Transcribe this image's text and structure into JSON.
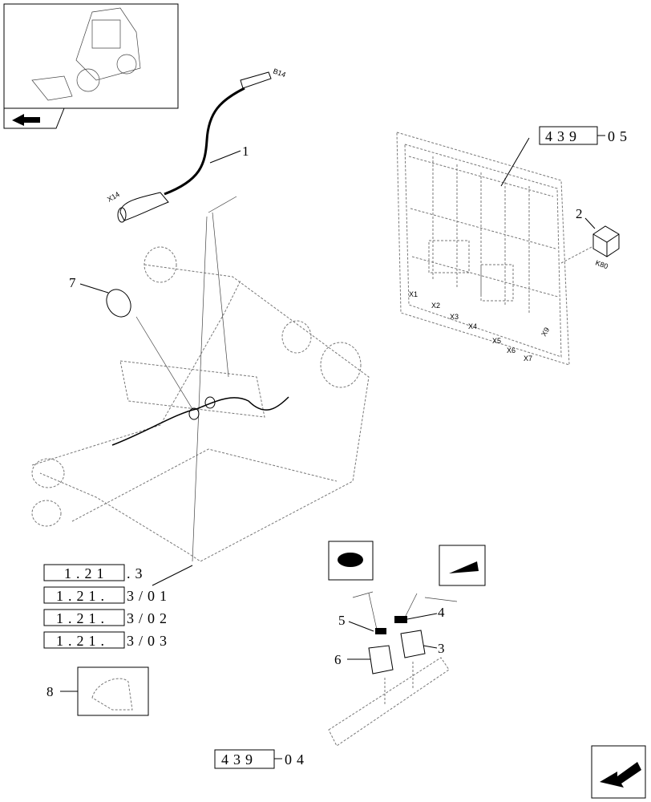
{
  "cable_labels": [
    "B14",
    "X14"
  ],
  "relay_label": "K80",
  "fuse_box_connectors": [
    "X1",
    "X2",
    "X3",
    "X4",
    "X5",
    "X6",
    "X7",
    "X9"
  ],
  "callouts": [
    "1",
    "2",
    "3",
    "4",
    "5",
    "6",
    "7",
    "8"
  ],
  "references": [
    {
      "box": "439",
      "suffix": "05"
    },
    {
      "box": "439",
      "suffix": "04"
    }
  ],
  "section_refs": [
    {
      "box": "1.21",
      "suffix": ".3"
    },
    {
      "box": "1.21.",
      "suffix": "3/01"
    },
    {
      "box": "1.21.",
      "suffix": "3/02"
    },
    {
      "box": "1.21.",
      "suffix": "3/03"
    }
  ]
}
